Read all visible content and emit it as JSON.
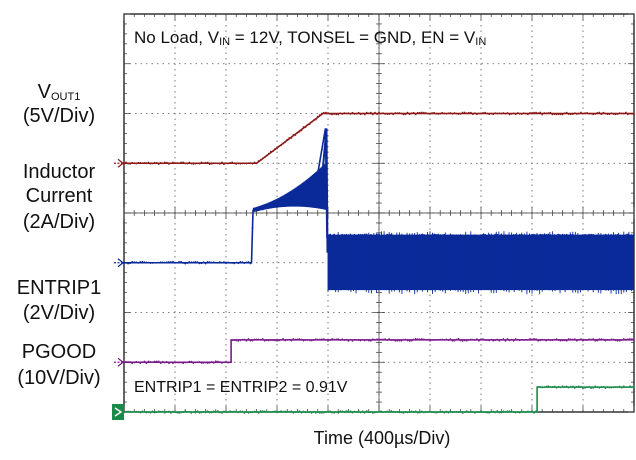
{
  "chart_data": {
    "type": "line",
    "title_parts": {
      "p1": "No Load, V",
      "p1_sub": "IN",
      "p2": " = 12V, TONSEL = GND, EN = V",
      "p2_sub": "IN"
    },
    "footer_annotation": "ENTRIP1 = ENTRIP2 = 0.91V",
    "xlabel": "Time (400µs/Div)",
    "x_divisions": 10,
    "y_divisions": 8,
    "channels": [
      {
        "label_main": "V",
        "label_sub": "OUT1",
        "scale": "(5V/Div)",
        "color": "#8b1a1a",
        "ground_div": 5.0,
        "points_div": [
          [
            0,
            0
          ],
          [
            2.6,
            0
          ],
          [
            3.9,
            1.0
          ],
          [
            10,
            1.0
          ]
        ]
      },
      {
        "label_line1": "Inductor",
        "label_line2": "Current",
        "scale": "(2A/Div)",
        "color": "#0a2a9a",
        "ground_div": 3.0,
        "points_div": [
          [
            0,
            0
          ],
          [
            2.5,
            0
          ],
          [
            2.53,
            1.05
          ],
          [
            3.0,
            1.15
          ],
          [
            3.8,
            1.8
          ],
          [
            3.95,
            2.7
          ],
          [
            3.98,
            0.5
          ],
          [
            4.0,
            0.55
          ],
          [
            10,
            0.55
          ]
        ],
        "ripple_div": {
          "start": 4.0,
          "end": 10,
          "low": -0.55,
          "high": 0.55
        },
        "burst_div": {
          "start": 2.53,
          "end": 3.95,
          "amp_start": 0.1,
          "amp_end": 1.1
        }
      },
      {
        "label_main": "ENTRIP1",
        "scale": "(2V/Div)",
        "color": "#7a1a8a",
        "ground_div": 1.0,
        "points_div": [
          [
            0,
            0
          ],
          [
            2.1,
            0
          ],
          [
            2.1,
            0.45
          ],
          [
            10,
            0.45
          ]
        ]
      },
      {
        "label_main": "PGOOD",
        "scale": "(10V/Div)",
        "color": "#1a8a4a",
        "ground_div": 0.0,
        "points_div": [
          [
            0,
            0
          ],
          [
            8.1,
            0
          ],
          [
            8.1,
            0.5
          ],
          [
            10,
            0.5
          ]
        ]
      }
    ]
  }
}
